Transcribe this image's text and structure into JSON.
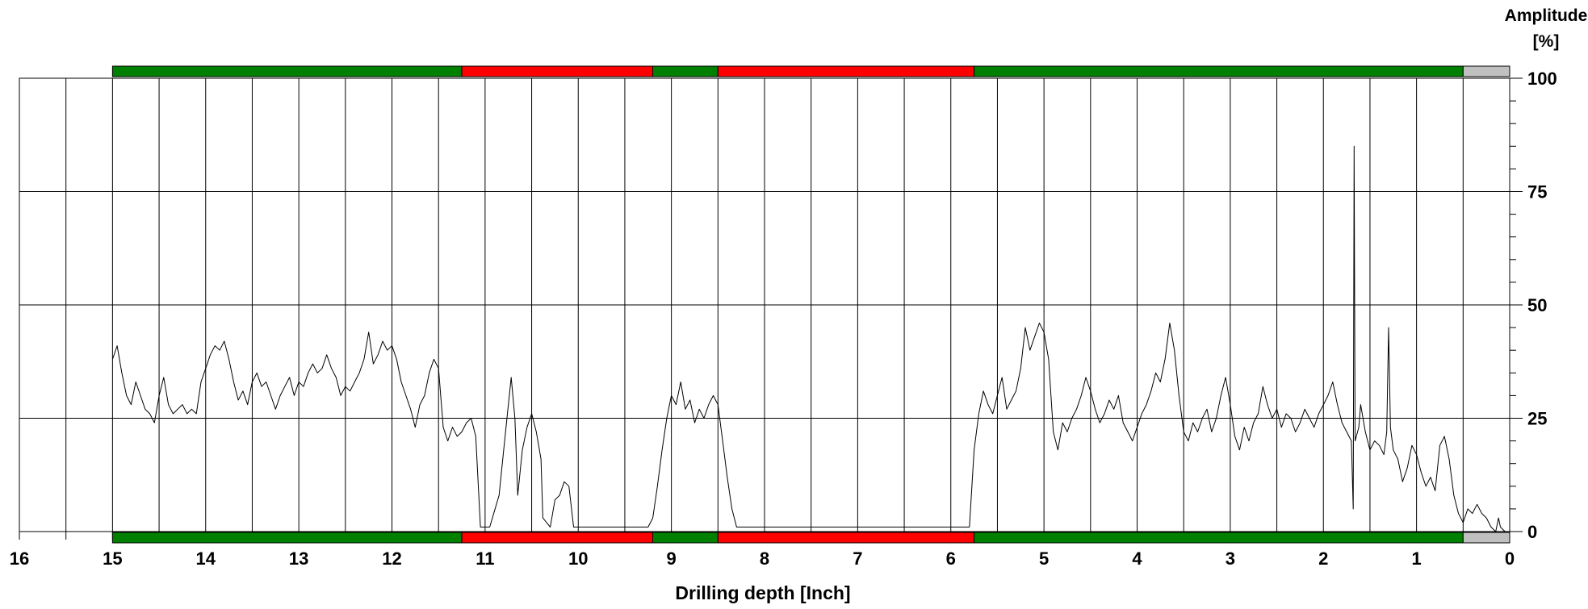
{
  "chart_data": {
    "type": "line",
    "xlabel": "Drilling depth [Inch]",
    "ylabel_line1": "Amplitude",
    "ylabel_line2": "[%]",
    "x_axis_reversed": true,
    "xlim": [
      0,
      16
    ],
    "ylim": [
      0,
      100
    ],
    "x_ticks": [
      16,
      15,
      14,
      13,
      12,
      11,
      10,
      9,
      8,
      7,
      6,
      5,
      4,
      3,
      2,
      1,
      0
    ],
    "y_ticks": [
      0,
      25,
      50,
      75,
      100
    ],
    "grid": true,
    "condition_bands": [
      {
        "from": 15.0,
        "to": 11.25,
        "status": "good"
      },
      {
        "from": 11.25,
        "to": 9.2,
        "status": "bad"
      },
      {
        "from": 9.2,
        "to": 8.5,
        "status": "good"
      },
      {
        "from": 8.5,
        "to": 5.75,
        "status": "bad"
      },
      {
        "from": 5.75,
        "to": 0.5,
        "status": "good"
      },
      {
        "from": 0.5,
        "to": 0.0,
        "status": "none"
      }
    ],
    "band_colors": {
      "good": "#008000",
      "bad": "#ff0000",
      "none": "#c0c0c0"
    },
    "series": [
      {
        "color": "#000000",
        "points": [
          [
            15.0,
            38
          ],
          [
            14.95,
            41
          ],
          [
            14.9,
            35
          ],
          [
            14.85,
            30
          ],
          [
            14.8,
            28
          ],
          [
            14.75,
            33
          ],
          [
            14.7,
            30
          ],
          [
            14.65,
            27
          ],
          [
            14.6,
            26
          ],
          [
            14.55,
            24
          ],
          [
            14.5,
            30
          ],
          [
            14.45,
            34
          ],
          [
            14.4,
            28
          ],
          [
            14.35,
            26
          ],
          [
            14.3,
            27
          ],
          [
            14.25,
            28
          ],
          [
            14.2,
            26
          ],
          [
            14.15,
            27
          ],
          [
            14.1,
            26
          ],
          [
            14.05,
            33
          ],
          [
            14.0,
            36
          ],
          [
            13.95,
            39
          ],
          [
            13.9,
            41
          ],
          [
            13.85,
            40
          ],
          [
            13.8,
            42
          ],
          [
            13.75,
            38
          ],
          [
            13.7,
            33
          ],
          [
            13.65,
            29
          ],
          [
            13.6,
            31
          ],
          [
            13.55,
            28
          ],
          [
            13.5,
            33
          ],
          [
            13.45,
            35
          ],
          [
            13.4,
            32
          ],
          [
            13.35,
            33
          ],
          [
            13.3,
            30
          ],
          [
            13.25,
            27
          ],
          [
            13.2,
            30
          ],
          [
            13.15,
            32
          ],
          [
            13.1,
            34
          ],
          [
            13.05,
            30
          ],
          [
            13.0,
            33
          ],
          [
            12.95,
            32
          ],
          [
            12.9,
            35
          ],
          [
            12.85,
            37
          ],
          [
            12.8,
            35
          ],
          [
            12.75,
            36
          ],
          [
            12.7,
            39
          ],
          [
            12.65,
            36
          ],
          [
            12.6,
            34
          ],
          [
            12.55,
            30
          ],
          [
            12.5,
            32
          ],
          [
            12.45,
            31
          ],
          [
            12.4,
            33
          ],
          [
            12.35,
            35
          ],
          [
            12.3,
            38
          ],
          [
            12.25,
            44
          ],
          [
            12.2,
            37
          ],
          [
            12.15,
            39
          ],
          [
            12.1,
            42
          ],
          [
            12.05,
            40
          ],
          [
            12.0,
            41
          ],
          [
            11.95,
            38
          ],
          [
            11.9,
            33
          ],
          [
            11.85,
            30
          ],
          [
            11.8,
            27
          ],
          [
            11.75,
            23
          ],
          [
            11.7,
            28
          ],
          [
            11.65,
            30
          ],
          [
            11.6,
            35
          ],
          [
            11.55,
            38
          ],
          [
            11.5,
            36
          ],
          [
            11.45,
            23
          ],
          [
            11.4,
            20
          ],
          [
            11.35,
            23
          ],
          [
            11.3,
            21
          ],
          [
            11.25,
            22
          ],
          [
            11.2,
            24
          ],
          [
            11.15,
            25
          ],
          [
            11.1,
            21
          ],
          [
            11.05,
            1
          ],
          [
            10.95,
            1
          ],
          [
            10.85,
            8
          ],
          [
            10.8,
            18
          ],
          [
            10.75,
            28
          ],
          [
            10.72,
            34
          ],
          [
            10.68,
            25
          ],
          [
            10.65,
            8
          ],
          [
            10.6,
            18
          ],
          [
            10.55,
            23
          ],
          [
            10.5,
            26
          ],
          [
            10.45,
            22
          ],
          [
            10.4,
            16
          ],
          [
            10.38,
            3
          ],
          [
            10.3,
            1
          ],
          [
            10.25,
            7
          ],
          [
            10.2,
            8
          ],
          [
            10.15,
            11
          ],
          [
            10.1,
            10
          ],
          [
            10.05,
            1
          ],
          [
            9.8,
            1
          ],
          [
            9.5,
            1
          ],
          [
            9.25,
            1
          ],
          [
            9.2,
            3
          ],
          [
            9.15,
            10
          ],
          [
            9.1,
            18
          ],
          [
            9.05,
            25
          ],
          [
            9.0,
            30
          ],
          [
            8.95,
            28
          ],
          [
            8.9,
            33
          ],
          [
            8.85,
            27
          ],
          [
            8.8,
            29
          ],
          [
            8.75,
            24
          ],
          [
            8.7,
            27
          ],
          [
            8.65,
            25
          ],
          [
            8.6,
            28
          ],
          [
            8.55,
            30
          ],
          [
            8.5,
            28
          ],
          [
            8.45,
            20
          ],
          [
            8.4,
            12
          ],
          [
            8.35,
            5
          ],
          [
            8.3,
            1
          ],
          [
            7.5,
            1
          ],
          [
            6.5,
            1
          ],
          [
            5.8,
            1
          ],
          [
            5.75,
            18
          ],
          [
            5.7,
            26
          ],
          [
            5.65,
            31
          ],
          [
            5.6,
            28
          ],
          [
            5.55,
            26
          ],
          [
            5.5,
            30
          ],
          [
            5.45,
            34
          ],
          [
            5.4,
            27
          ],
          [
            5.35,
            29
          ],
          [
            5.3,
            31
          ],
          [
            5.25,
            36
          ],
          [
            5.2,
            45
          ],
          [
            5.15,
            40
          ],
          [
            5.1,
            43
          ],
          [
            5.05,
            46
          ],
          [
            5.0,
            44
          ],
          [
            4.95,
            38
          ],
          [
            4.9,
            22
          ],
          [
            4.85,
            18
          ],
          [
            4.8,
            24
          ],
          [
            4.75,
            22
          ],
          [
            4.7,
            25
          ],
          [
            4.65,
            27
          ],
          [
            4.6,
            30
          ],
          [
            4.55,
            34
          ],
          [
            4.5,
            31
          ],
          [
            4.45,
            27
          ],
          [
            4.4,
            24
          ],
          [
            4.35,
            26
          ],
          [
            4.3,
            29
          ],
          [
            4.25,
            27
          ],
          [
            4.2,
            30
          ],
          [
            4.15,
            24
          ],
          [
            4.1,
            22
          ],
          [
            4.05,
            20
          ],
          [
            4.0,
            23
          ],
          [
            3.95,
            26
          ],
          [
            3.9,
            28
          ],
          [
            3.85,
            31
          ],
          [
            3.8,
            35
          ],
          [
            3.75,
            33
          ],
          [
            3.7,
            38
          ],
          [
            3.65,
            46
          ],
          [
            3.6,
            40
          ],
          [
            3.55,
            30
          ],
          [
            3.5,
            22
          ],
          [
            3.45,
            20
          ],
          [
            3.4,
            24
          ],
          [
            3.35,
            22
          ],
          [
            3.3,
            25
          ],
          [
            3.25,
            27
          ],
          [
            3.2,
            22
          ],
          [
            3.15,
            25
          ],
          [
            3.1,
            30
          ],
          [
            3.05,
            34
          ],
          [
            3.0,
            28
          ],
          [
            2.95,
            21
          ],
          [
            2.9,
            18
          ],
          [
            2.85,
            23
          ],
          [
            2.8,
            20
          ],
          [
            2.75,
            24
          ],
          [
            2.7,
            26
          ],
          [
            2.65,
            32
          ],
          [
            2.6,
            28
          ],
          [
            2.55,
            25
          ],
          [
            2.5,
            27
          ],
          [
            2.45,
            23
          ],
          [
            2.4,
            26
          ],
          [
            2.35,
            25
          ],
          [
            2.3,
            22
          ],
          [
            2.25,
            24
          ],
          [
            2.2,
            27
          ],
          [
            2.15,
            25
          ],
          [
            2.1,
            23
          ],
          [
            2.05,
            26
          ],
          [
            2.0,
            28
          ],
          [
            1.95,
            30
          ],
          [
            1.9,
            33
          ],
          [
            1.85,
            28
          ],
          [
            1.8,
            24
          ],
          [
            1.75,
            22
          ],
          [
            1.7,
            20
          ],
          [
            1.68,
            5
          ],
          [
            1.67,
            85
          ],
          [
            1.66,
            20
          ],
          [
            1.62,
            23
          ],
          [
            1.6,
            28
          ],
          [
            1.55,
            22
          ],
          [
            1.5,
            18
          ],
          [
            1.45,
            20
          ],
          [
            1.4,
            19
          ],
          [
            1.35,
            17
          ],
          [
            1.32,
            22
          ],
          [
            1.3,
            45
          ],
          [
            1.28,
            23
          ],
          [
            1.25,
            18
          ],
          [
            1.2,
            16
          ],
          [
            1.15,
            11
          ],
          [
            1.1,
            14
          ],
          [
            1.05,
            19
          ],
          [
            1.0,
            17
          ],
          [
            0.95,
            13
          ],
          [
            0.9,
            10
          ],
          [
            0.85,
            12
          ],
          [
            0.8,
            9
          ],
          [
            0.78,
            13
          ],
          [
            0.75,
            19
          ],
          [
            0.7,
            21
          ],
          [
            0.65,
            16
          ],
          [
            0.6,
            8
          ],
          [
            0.55,
            4
          ],
          [
            0.5,
            2
          ],
          [
            0.45,
            5
          ],
          [
            0.4,
            4
          ],
          [
            0.35,
            6
          ],
          [
            0.3,
            4
          ],
          [
            0.25,
            3
          ],
          [
            0.2,
            1
          ],
          [
            0.15,
            0
          ],
          [
            0.12,
            3
          ],
          [
            0.1,
            1
          ],
          [
            0.05,
            0
          ],
          [
            0.0,
            0
          ]
        ]
      }
    ]
  }
}
